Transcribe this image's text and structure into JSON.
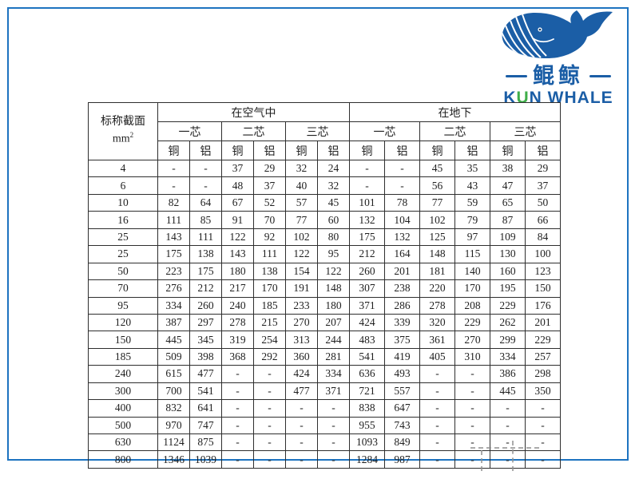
{
  "colors": {
    "frame": "#1d73c0",
    "blue": "#1b5ea6",
    "green": "#3fae49",
    "line": "#2e2e2e",
    "ink": "#1f1f1f"
  },
  "logo": {
    "brand_cn": "鲲鲸",
    "brand_en_k": "K",
    "brand_en_u": "U",
    "brand_en_rest": "N WHALE"
  },
  "table": {
    "corner": {
      "line1": "标称截面",
      "unit_base": "mm",
      "unit_sup": "2"
    },
    "group_air": "在空气中",
    "group_ground": "在地下",
    "core1": "一芯",
    "core2": "二芯",
    "core3": "三芯",
    "copper": "铜",
    "aluminum": "铝",
    "rows": [
      {
        "section": "4",
        "values": [
          "-",
          "-",
          "37",
          "29",
          "32",
          "24",
          "-",
          "-",
          "45",
          "35",
          "38",
          "29"
        ]
      },
      {
        "section": "6",
        "values": [
          "-",
          "-",
          "48",
          "37",
          "40",
          "32",
          "-",
          "-",
          "56",
          "43",
          "47",
          "37"
        ]
      },
      {
        "section": "10",
        "values": [
          "82",
          "64",
          "67",
          "52",
          "57",
          "45",
          "101",
          "78",
          "77",
          "59",
          "65",
          "50"
        ]
      },
      {
        "section": "16",
        "values": [
          "111",
          "85",
          "91",
          "70",
          "77",
          "60",
          "132",
          "104",
          "102",
          "79",
          "87",
          "66"
        ]
      },
      {
        "section": "25",
        "values": [
          "143",
          "111",
          "122",
          "92",
          "102",
          "80",
          "175",
          "132",
          "125",
          "97",
          "109",
          "84"
        ]
      },
      {
        "section": "25",
        "values": [
          "175",
          "138",
          "143",
          "111",
          "122",
          "95",
          "212",
          "164",
          "148",
          "115",
          "130",
          "100"
        ]
      },
      {
        "section": "50",
        "values": [
          "223",
          "175",
          "180",
          "138",
          "154",
          "122",
          "260",
          "201",
          "181",
          "140",
          "160",
          "123"
        ]
      },
      {
        "section": "70",
        "values": [
          "276",
          "212",
          "217",
          "170",
          "191",
          "148",
          "307",
          "238",
          "220",
          "170",
          "195",
          "150"
        ]
      },
      {
        "section": "95",
        "values": [
          "334",
          "260",
          "240",
          "185",
          "233",
          "180",
          "371",
          "286",
          "278",
          "208",
          "229",
          "176"
        ]
      },
      {
        "section": "120",
        "values": [
          "387",
          "297",
          "278",
          "215",
          "270",
          "207",
          "424",
          "339",
          "320",
          "229",
          "262",
          "201"
        ]
      },
      {
        "section": "150",
        "values": [
          "445",
          "345",
          "319",
          "254",
          "313",
          "244",
          "483",
          "375",
          "361",
          "270",
          "299",
          "229"
        ]
      },
      {
        "section": "185",
        "values": [
          "509",
          "398",
          "368",
          "292",
          "360",
          "281",
          "541",
          "419",
          "405",
          "310",
          "334",
          "257"
        ]
      },
      {
        "section": "240",
        "values": [
          "615",
          "477",
          "-",
          "-",
          "424",
          "334",
          "636",
          "493",
          "-",
          "-",
          "386",
          "298"
        ]
      },
      {
        "section": "300",
        "values": [
          "700",
          "541",
          "-",
          "-",
          "477",
          "371",
          "721",
          "557",
          "-",
          "-",
          "445",
          "350"
        ]
      },
      {
        "section": "400",
        "values": [
          "832",
          "641",
          "-",
          "-",
          "-",
          "-",
          "838",
          "647",
          "-",
          "-",
          "-",
          "-"
        ]
      },
      {
        "section": "500",
        "values": [
          "970",
          "747",
          "-",
          "-",
          "-",
          "-",
          "955",
          "743",
          "-",
          "-",
          "-",
          "-"
        ]
      },
      {
        "section": "630",
        "values": [
          "1124",
          "875",
          "-",
          "-",
          "-",
          "-",
          "1093",
          "849",
          "-",
          "-",
          "-",
          "-"
        ]
      },
      {
        "section": "800",
        "values": [
          "1346",
          "1039",
          "-",
          "-",
          "-",
          "-",
          "1284",
          "987",
          "-",
          "-",
          "-",
          "-"
        ]
      }
    ]
  }
}
